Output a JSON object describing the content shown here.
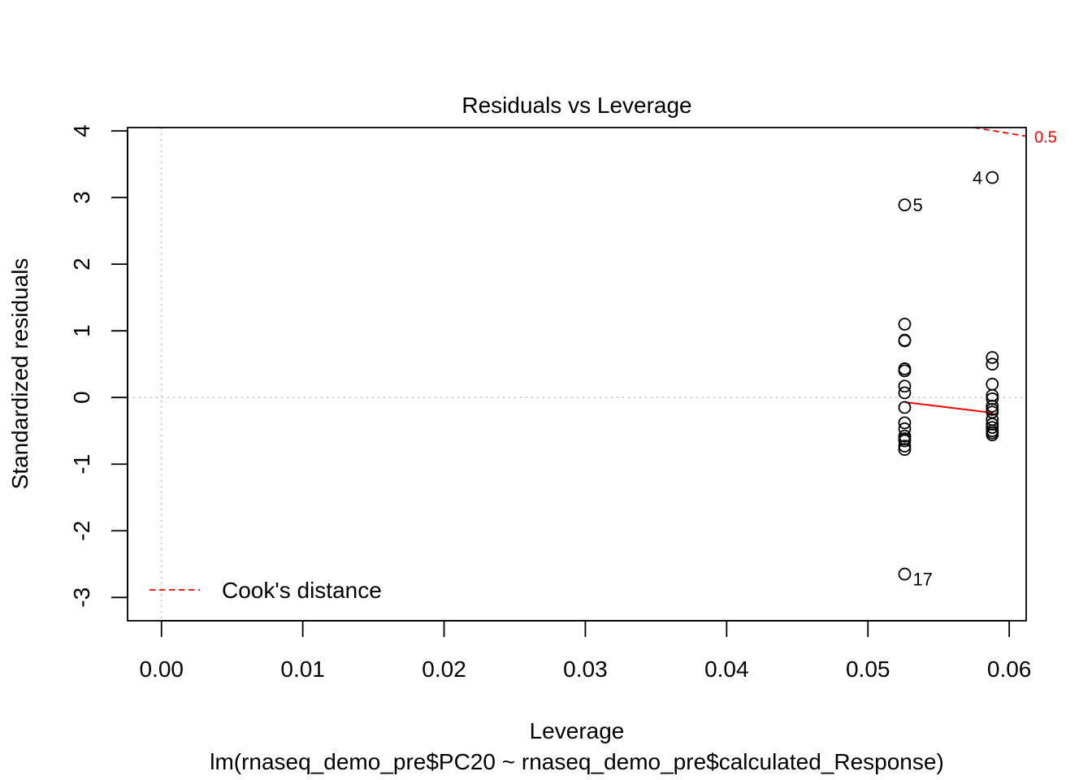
{
  "chart_data": {
    "type": "scatter",
    "title": "Residuals vs Leverage",
    "xlabel": "Leverage",
    "subtitle": "lm(rnaseq_demo_pre$PC20 ~ rnaseq_demo_pre$calculated_Response)",
    "ylabel": "Standardized residuals",
    "xlim": [
      -0.0024,
      0.0612
    ],
    "ylim": [
      -3.35,
      4.05
    ],
    "x_ticks": [
      0.0,
      0.01,
      0.02,
      0.03,
      0.04,
      0.05,
      0.06
    ],
    "x_tick_labels": [
      "0.00",
      "0.01",
      "0.02",
      "0.03",
      "0.04",
      "0.05",
      "0.06"
    ],
    "y_ticks": [
      -3,
      -2,
      -1,
      0,
      1,
      2,
      3,
      4
    ],
    "y_tick_labels": [
      "-3",
      "-2",
      "-1",
      "0",
      "1",
      "2",
      "3",
      "4"
    ],
    "grid": false,
    "reference_lines": [
      {
        "orientation": "horizontal",
        "value": 0,
        "style": "dotted",
        "color": "#bebebe"
      },
      {
        "orientation": "vertical",
        "value": 0,
        "style": "dotted",
        "color": "#bebebe"
      }
    ],
    "points": [
      {
        "x": 0.0526,
        "y": 2.89,
        "label": "5"
      },
      {
        "x": 0.0526,
        "y": 1.1,
        "label": ""
      },
      {
        "x": 0.0526,
        "y": 0.86,
        "label": ""
      },
      {
        "x": 0.0526,
        "y": 0.85,
        "label": ""
      },
      {
        "x": 0.0526,
        "y": 0.43,
        "label": ""
      },
      {
        "x": 0.0526,
        "y": 0.4,
        "label": ""
      },
      {
        "x": 0.0526,
        "y": 0.17,
        "label": ""
      },
      {
        "x": 0.0526,
        "y": 0.07,
        "label": ""
      },
      {
        "x": 0.0526,
        "y": -0.15,
        "label": ""
      },
      {
        "x": 0.0526,
        "y": -0.38,
        "label": ""
      },
      {
        "x": 0.0526,
        "y": -0.47,
        "label": ""
      },
      {
        "x": 0.0526,
        "y": -0.58,
        "label": ""
      },
      {
        "x": 0.0526,
        "y": -0.62,
        "label": ""
      },
      {
        "x": 0.0526,
        "y": -0.65,
        "label": ""
      },
      {
        "x": 0.0526,
        "y": -0.73,
        "label": ""
      },
      {
        "x": 0.0526,
        "y": -0.78,
        "label": ""
      },
      {
        "x": 0.0526,
        "y": -2.65,
        "label": "17"
      },
      {
        "x": 0.0588,
        "y": 3.3,
        "label": "4"
      },
      {
        "x": 0.0588,
        "y": 0.6,
        "label": ""
      },
      {
        "x": 0.0588,
        "y": 0.5,
        "label": ""
      },
      {
        "x": 0.0588,
        "y": 0.2,
        "label": ""
      },
      {
        "x": 0.0588,
        "y": 0.03,
        "label": ""
      },
      {
        "x": 0.0588,
        "y": -0.02,
        "label": ""
      },
      {
        "x": 0.0588,
        "y": -0.13,
        "label": ""
      },
      {
        "x": 0.0588,
        "y": -0.18,
        "label": ""
      },
      {
        "x": 0.0588,
        "y": -0.22,
        "label": ""
      },
      {
        "x": 0.0588,
        "y": -0.33,
        "label": ""
      },
      {
        "x": 0.0588,
        "y": -0.4,
        "label": ""
      },
      {
        "x": 0.0588,
        "y": -0.45,
        "label": ""
      },
      {
        "x": 0.0588,
        "y": -0.5,
        "label": ""
      },
      {
        "x": 0.0588,
        "y": -0.53,
        "label": ""
      },
      {
        "x": 0.0588,
        "y": -0.56,
        "label": ""
      }
    ],
    "smooth_line": {
      "color": "#ff0000",
      "points": [
        {
          "x": 0.0526,
          "y": -0.07
        },
        {
          "x": 0.0588,
          "y": -0.23
        }
      ]
    },
    "cooks_distance": {
      "color": "#ff0000",
      "style": "dashed",
      "contour_label": "0.5",
      "points": [
        {
          "x": 0.0575,
          "y": 4.05
        },
        {
          "x": 0.0612,
          "y": 3.92
        }
      ]
    },
    "legend": {
      "placement": "bottom-left",
      "entries": [
        {
          "label": "Cook's distance",
          "color": "#ff0000",
          "style": "dashed"
        }
      ]
    }
  }
}
